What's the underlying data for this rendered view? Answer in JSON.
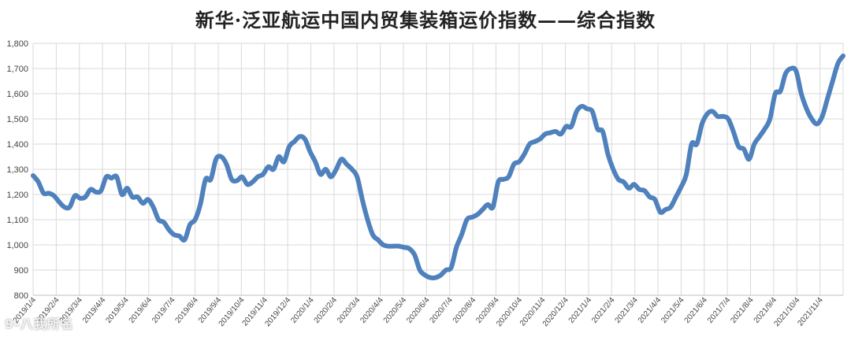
{
  "chart_data": {
    "type": "line",
    "title": "新华·泛亚航运中国内贸集装箱运价指数——综合指数",
    "xlabel": "",
    "ylabel": "",
    "ylim": [
      800,
      1800
    ],
    "yticks": [
      "800",
      "900",
      "1,000",
      "1,100",
      "1,200",
      "1,300",
      "1,400",
      "1,500",
      "1,600",
      "1,700",
      "1,800"
    ],
    "xticks": [
      "2019/1/4",
      "2019/2/4",
      "2019/3/4",
      "2019/4/4",
      "2019/5/4",
      "2019/6/4",
      "2019/7/4",
      "2019/8/4",
      "2019/9/4",
      "2019/10/4",
      "2019/11/4",
      "2019/12/4",
      "2020/1/4",
      "2020/2/4",
      "2020/3/4",
      "2020/4/4",
      "2020/5/4",
      "2020/6/4",
      "2020/7/4",
      "2020/8/4",
      "2020/9/4",
      "2020/10/4",
      "2020/11/4",
      "2020/12/4",
      "2021/1/4",
      "2021/2/4",
      "2021/3/4",
      "2021/4/4",
      "2021/5/4",
      "2021/6/4",
      "2021/7/4",
      "2021/8/4",
      "2021/9/4",
      "2021/10/4",
      "2021/11/4"
    ],
    "grid": true,
    "legend": "none",
    "color": "#4f81bd",
    "series": [
      {
        "values": [
          1275,
          1250,
          1205,
          1205,
          1195,
          1170,
          1150,
          1150,
          1195,
          1185,
          1190,
          1220,
          1210,
          1215,
          1270,
          1265,
          1270,
          1200,
          1225,
          1190,
          1190,
          1165,
          1180,
          1150,
          1100,
          1090,
          1060,
          1040,
          1035,
          1020,
          1080,
          1100,
          1160,
          1260,
          1260,
          1340,
          1350,
          1320,
          1260,
          1255,
          1270,
          1240,
          1250,
          1270,
          1280,
          1310,
          1300,
          1350,
          1330,
          1390,
          1410,
          1430,
          1420,
          1370,
          1330,
          1280,
          1300,
          1270,
          1300,
          1340,
          1320,
          1300,
          1270,
          1180,
          1100,
          1040,
          1020,
          1000,
          995,
          995,
          995,
          990,
          985,
          960,
          900,
          880,
          870,
          870,
          880,
          900,
          910,
          990,
          1040,
          1100,
          1110,
          1120,
          1140,
          1160,
          1150,
          1250,
          1260,
          1270,
          1320,
          1330,
          1360,
          1400,
          1410,
          1420,
          1440,
          1445,
          1450,
          1440,
          1470,
          1470,
          1530,
          1550,
          1540,
          1530,
          1460,
          1450,
          1360,
          1300,
          1260,
          1250,
          1225,
          1240,
          1220,
          1215,
          1190,
          1180,
          1130,
          1140,
          1150,
          1190,
          1230,
          1280,
          1400,
          1400,
          1480,
          1520,
          1530,
          1510,
          1510,
          1500,
          1450,
          1390,
          1380,
          1340,
          1400,
          1430,
          1460,
          1500,
          1600,
          1610,
          1680,
          1700,
          1690,
          1600,
          1540,
          1500,
          1480,
          1510,
          1580,
          1650,
          1720,
          1750
        ]
      }
    ]
  },
  "watermark": "9-八我所名"
}
